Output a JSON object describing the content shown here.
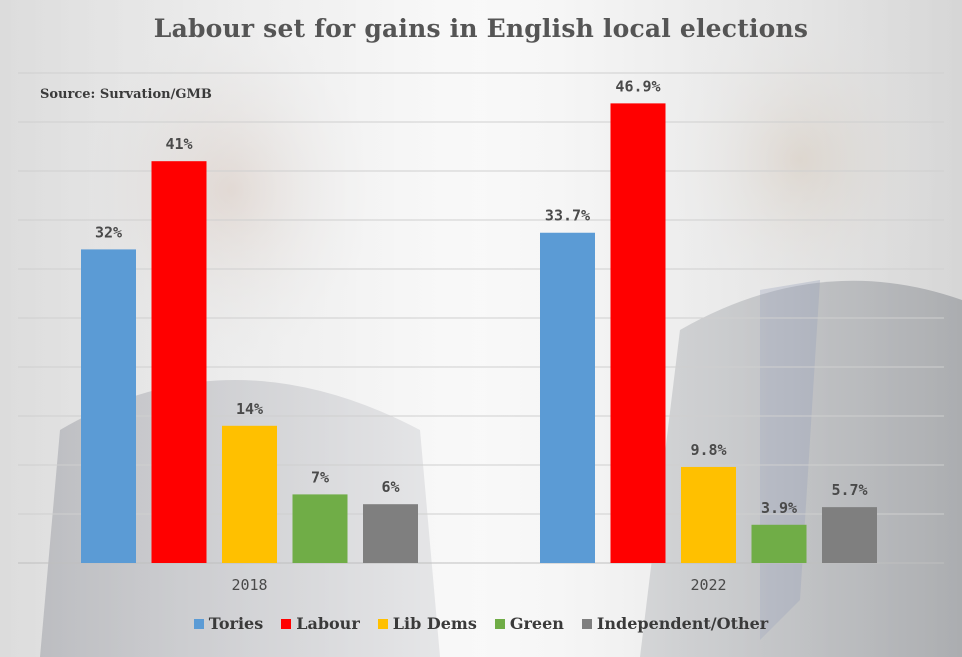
{
  "colors": {
    "Tories": "#5b9bd5",
    "Labour": "#ff0000",
    "Lib Dems": "#ffc000",
    "Green": "#70ad47",
    "Independent/Other": "#7f7f7f"
  },
  "chart_data": {
    "type": "bar",
    "title": "Labour set for gains in English local elections",
    "source": "Source: Survation/GMB",
    "categories": [
      "2018",
      "2022"
    ],
    "series": [
      {
        "name": "Tories",
        "values": [
          32,
          33.7
        ],
        "labels": [
          "32%",
          "33.7%"
        ]
      },
      {
        "name": "Labour",
        "values": [
          41,
          46.9
        ],
        "labels": [
          "41%",
          "46.9%"
        ]
      },
      {
        "name": "Lib Dems",
        "values": [
          14,
          9.8
        ],
        "labels": [
          "14%",
          "9.8%"
        ]
      },
      {
        "name": "Green",
        "values": [
          7,
          3.9
        ],
        "labels": [
          "7%",
          "3.9%"
        ]
      },
      {
        "name": "Independent/Other",
        "values": [
          6,
          5.7
        ],
        "labels": [
          "6%",
          "5.7%"
        ]
      }
    ],
    "ylim": [
      0,
      50
    ],
    "grid": true,
    "legend_position": "bottom"
  }
}
